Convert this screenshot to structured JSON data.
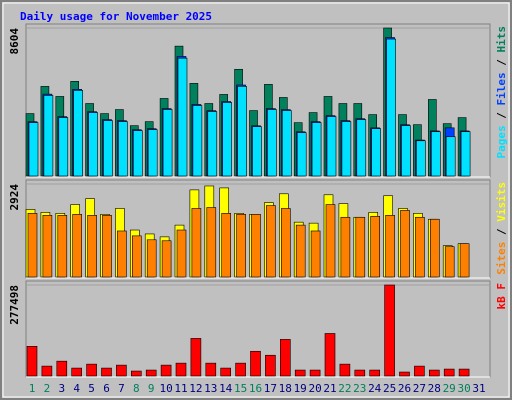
{
  "title": "Daily usage for November 2025",
  "legend_separator": "/",
  "chart_data": [
    {
      "type": "bar",
      "ylim": [
        0,
        8604
      ],
      "yticks": [
        8604
      ],
      "series": [
        {
          "name": "Hits",
          "color": "#00805c",
          "values": [
            3629,
            5209,
            4624,
            5502,
            4214,
            3629,
            3863,
            2927,
            3161,
            4507,
            7550,
            5385,
            4214,
            4741,
            6204,
            3804,
            5326,
            4565,
            3102,
            3687,
            4624,
            4214,
            4214,
            3570,
            8604,
            3570,
            2985,
            4448,
            3044,
            3395,
            null
          ]
        },
        {
          "name": "Files",
          "color": "#0040ff",
          "values": [
            3160,
            4760,
            3450,
            5040,
            3740,
            3280,
            3220,
            2690,
            2750,
            3920,
            6950,
            4160,
            3800,
            4330,
            5290,
            2920,
            3920,
            3860,
            2570,
            3160,
            3510,
            3220,
            3330,
            2800,
            8050,
            2980,
            2090,
            2620,
            2800,
            2620,
            null
          ]
        },
        {
          "name": "Pages",
          "color": "#00e0ff",
          "values": [
            3102,
            4682,
            3395,
            4975,
            3687,
            3219,
            3161,
            2634,
            2692,
            3863,
            6848,
            4097,
            3746,
            4273,
            5209,
            2868,
            3863,
            3804,
            2517,
            3102,
            3453,
            3161,
            3277,
            2751,
            7960,
            2927,
            2048,
            2575,
            2283,
            2575,
            null
          ]
        }
      ]
    },
    {
      "type": "bar",
      "ylim": [
        0,
        2924
      ],
      "yticks": [
        2924
      ],
      "series": [
        {
          "name": "Visits",
          "color": "#ffff00",
          "values": [
            2124,
            2031,
            2001,
            2278,
            2462,
            1970,
            2155,
            1477,
            1354,
            1262,
            1631,
            2739,
            2862,
            2801,
            2001,
            1970,
            2339,
            2616,
            1724,
            1693,
            2585,
            2308,
            1878,
            2031,
            2555,
            2155,
            2001,
            1816,
            985,
            1047,
            null
          ]
        },
        {
          "name": "Sites",
          "color": "#ff8000",
          "values": [
            2001,
            1939,
            1939,
            1970,
            1939,
            1939,
            1447,
            1293,
            1170,
            1139,
            1477,
            2155,
            2185,
            2001,
            1970,
            1970,
            2247,
            2155,
            1631,
            1447,
            2278,
            1878,
            1878,
            1908,
            1939,
            2093,
            1878,
            1816,
            954,
            1047,
            null
          ]
        }
      ]
    },
    {
      "type": "bar",
      "ylim": [
        0,
        277498
      ],
      "yticks": [
        277498
      ],
      "categories": [
        "1",
        "2",
        "3",
        "4",
        "5",
        "6",
        "7",
        "8",
        "9",
        "10",
        "11",
        "12",
        "13",
        "14",
        "15",
        "16",
        "17",
        "18",
        "19",
        "20",
        "21",
        "22",
        "23",
        "24",
        "25",
        "26",
        "27",
        "28",
        "29",
        "30",
        "31"
      ],
      "category_colors": [
        "#00805c",
        "#00805c",
        "#000080",
        "#000080",
        "#000080",
        "#000080",
        "#000080",
        "#00805c",
        "#00805c",
        "#000080",
        "#000080",
        "#000080",
        "#000080",
        "#000080",
        "#00805c",
        "#00805c",
        "#000080",
        "#000080",
        "#000080",
        "#000080",
        "#000080",
        "#00805c",
        "#00805c",
        "#000080",
        "#000080",
        "#000080",
        "#000080",
        "#000080",
        "#00805c",
        "#00805c",
        "#000080"
      ],
      "series": [
        {
          "name": "kB F",
          "color": "#ff0000",
          "values": [
            90489,
            30163,
            45245,
            24130,
            36195,
            24130,
            33179,
            15081,
            18098,
            33179,
            39212,
            114620,
            39212,
            24130,
            39212,
            75407,
            63342,
            111604,
            18098,
            18098,
            129700,
            36195,
            18098,
            18098,
            277498,
            12065,
            30163,
            18098,
            21114,
            21114,
            null
          ]
        }
      ]
    }
  ]
}
